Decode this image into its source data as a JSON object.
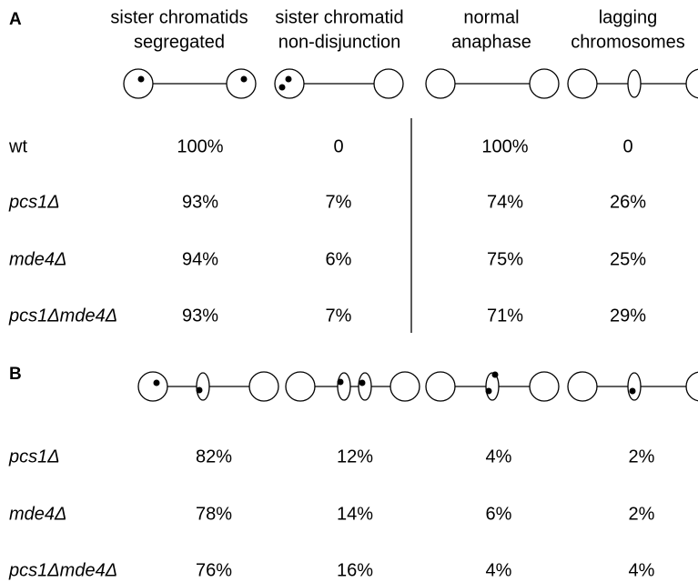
{
  "panel_a": {
    "label": "A",
    "columns": [
      [
        "sister chromatids",
        "segregated"
      ],
      [
        "sister chromatid",
        "non-disjunction"
      ],
      [
        "normal",
        "anaphase"
      ],
      [
        "lagging",
        "chromosomes"
      ]
    ],
    "rows": [
      {
        "strain": "wt",
        "values": [
          "100%",
          "0",
          "100%",
          "0"
        ]
      },
      {
        "strain": "pcs1Δ",
        "values": [
          "93%",
          "7%",
          "74%",
          "26%"
        ]
      },
      {
        "strain": "mde4Δ",
        "values": [
          "94%",
          "6%",
          "75%",
          "25%"
        ]
      },
      {
        "strain": "pcs1Δmde4Δ",
        "values": [
          "93%",
          "7%",
          "71%",
          "29%"
        ]
      }
    ]
  },
  "panel_b": {
    "label": "B",
    "rows": [
      {
        "strain": "pcs1Δ",
        "values": [
          "82%",
          "12%",
          "4%",
          "2%"
        ]
      },
      {
        "strain": "mde4Δ",
        "values": [
          "78%",
          "14%",
          "6%",
          "2%"
        ]
      },
      {
        "strain": "pcs1Δmde4Δ",
        "values": [
          "76%",
          "16%",
          "4%",
          "4%"
        ]
      }
    ]
  }
}
